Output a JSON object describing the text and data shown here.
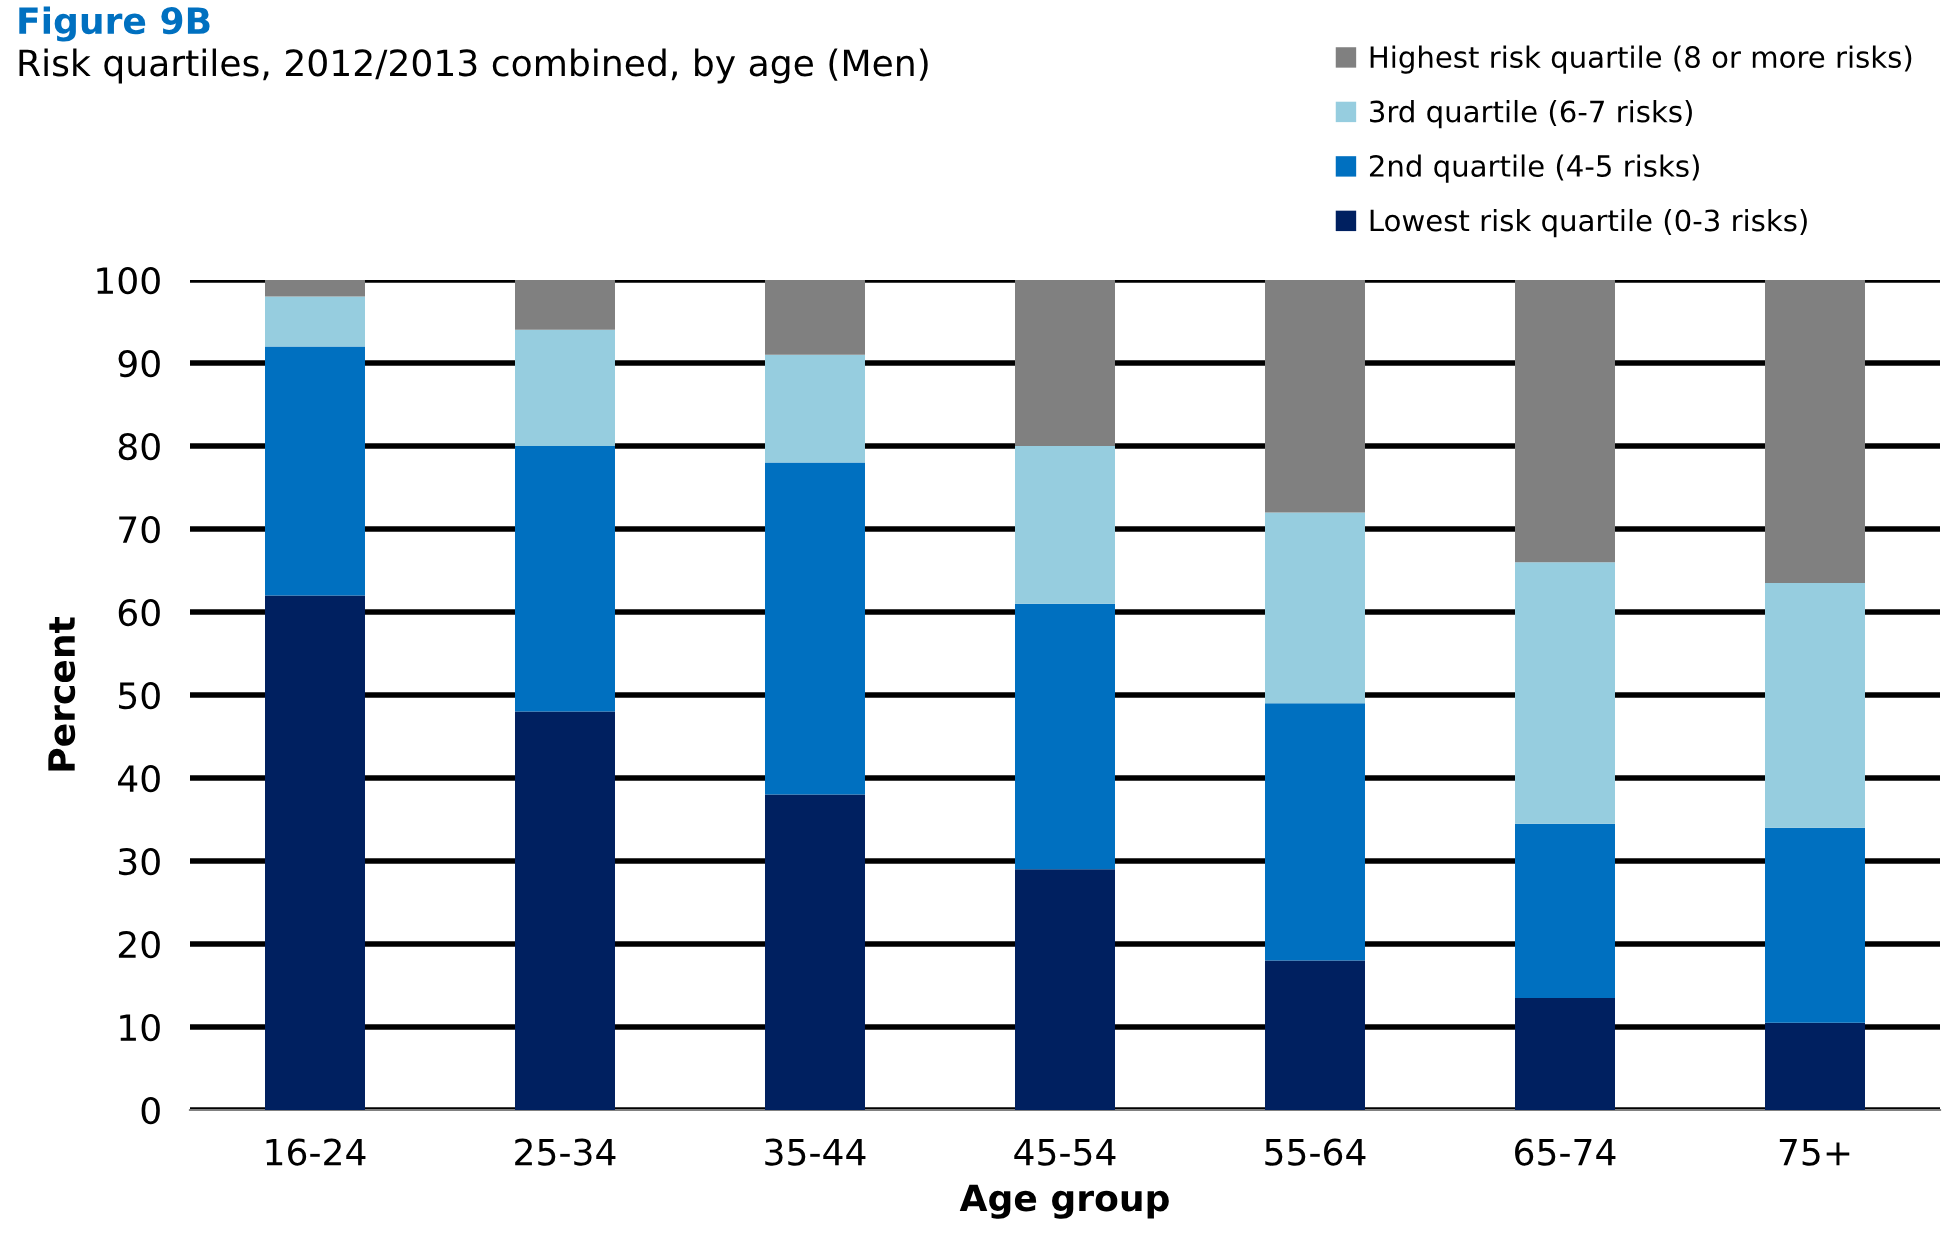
{
  "chart_data": {
    "type": "bar",
    "stacked": true,
    "title": "Figure 9B",
    "subtitle": "Risk quartiles, 2012/2013 combined, by age (Men)",
    "xlabel": "Age group",
    "ylabel": "Percent",
    "categories": [
      "16-24",
      "25-34",
      "35-44",
      "45-54",
      "55-64",
      "65-74",
      "75+"
    ],
    "series": [
      {
        "name": "Lowest risk quartile (0-3 risks)",
        "color": "#002060",
        "values": [
          62,
          48,
          38,
          29,
          18,
          13.5,
          10.5
        ]
      },
      {
        "name": "2nd quartile (4-5 risks)",
        "color": "#0070c0",
        "values": [
          30,
          32,
          40,
          32,
          31,
          21,
          23.5
        ]
      },
      {
        "name": "3rd quartile (6-7 risks)",
        "color": "#96cddf",
        "values": [
          6,
          14,
          13,
          19,
          23,
          31.5,
          29.5
        ]
      },
      {
        "name": "Highest risk quartile (8 or more risks)",
        "color": "#808080",
        "values": [
          2,
          6,
          9,
          20,
          28,
          34,
          36.5
        ]
      }
    ],
    "ylim": [
      0,
      100
    ],
    "yticks": [
      0,
      10,
      20,
      30,
      40,
      50,
      60,
      70,
      80,
      90,
      100
    ],
    "grid": "y",
    "legend": "top right"
  }
}
